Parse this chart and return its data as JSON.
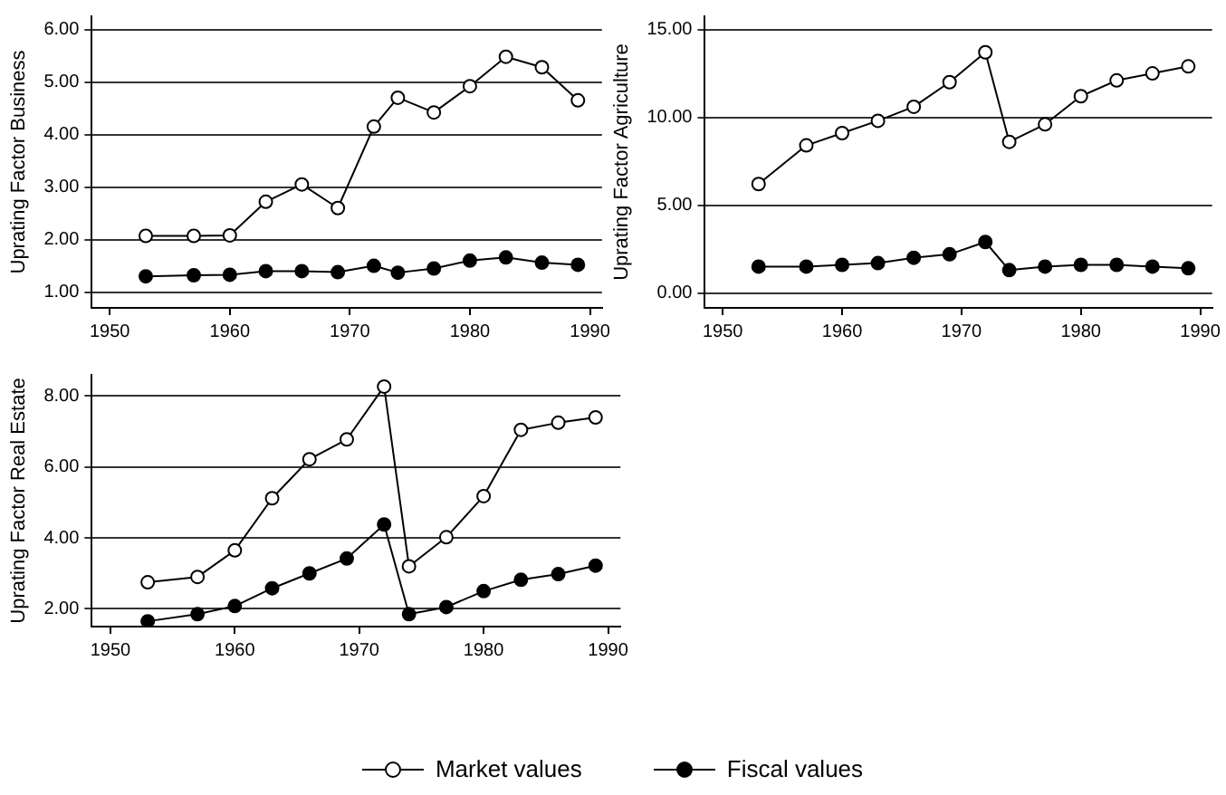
{
  "chart_data": [
    {
      "type": "line",
      "ylabel": "Uprating Factor Business",
      "x": [
        1953,
        1957,
        1960,
        1963,
        1966,
        1969,
        1972,
        1974,
        1977,
        1980,
        1983,
        1986,
        1989
      ],
      "xlim": [
        1948.5,
        1991
      ],
      "xticks": [
        1950,
        1960,
        1970,
        1980,
        1990
      ],
      "ylim": [
        0.7,
        6.25
      ],
      "yticks": [
        {
          "value": 1,
          "label": "1.00"
        },
        {
          "value": 2,
          "label": "2.00"
        },
        {
          "value": 3,
          "label": "3.00"
        },
        {
          "value": 4,
          "label": "4.00"
        },
        {
          "value": 5,
          "label": "5.00"
        },
        {
          "value": 6,
          "label": "6.00"
        }
      ],
      "grid": "y",
      "marker": "circle",
      "series": [
        {
          "color": "#000000",
          "values": [
            2.07,
            2.07,
            2.08,
            2.72,
            3.05,
            2.6,
            4.15,
            4.7,
            4.42,
            4.92,
            5.48,
            5.28,
            4.65
          ]
        },
        {
          "color": "#000000",
          "values": [
            1.3,
            1.32,
            1.33,
            1.4,
            1.4,
            1.38,
            1.5,
            1.37,
            1.45,
            1.6,
            1.66,
            1.56,
            1.52
          ]
        }
      ]
    },
    {
      "type": "line",
      "ylabel": "Uprating Factor Agriculture",
      "x": [
        1953,
        1957,
        1960,
        1963,
        1966,
        1969,
        1972,
        1974,
        1977,
        1980,
        1983,
        1986,
        1989
      ],
      "xlim": [
        1948.5,
        1991
      ],
      "xticks": [
        1950,
        1960,
        1970,
        1980,
        1990
      ],
      "ylim": [
        -0.85,
        15.75
      ],
      "yticks": [
        {
          "value": 0,
          "label": "0.00"
        },
        {
          "value": 5,
          "label": "5.00"
        },
        {
          "value": 10,
          "label": "10.00"
        },
        {
          "value": 15,
          "label": "15.00"
        }
      ],
      "grid": "y",
      "marker": "circle",
      "series": [
        {
          "color": "#000000",
          "values": [
            6.2,
            8.4,
            9.1,
            9.8,
            10.6,
            12.0,
            13.7,
            8.6,
            9.6,
            11.2,
            12.1,
            12.5,
            12.9
          ]
        },
        {
          "color": "#000000",
          "values": [
            1.5,
            1.5,
            1.6,
            1.7,
            2.0,
            2.2,
            2.9,
            1.3,
            1.5,
            1.6,
            1.6,
            1.5,
            1.4
          ]
        }
      ]
    },
    {
      "type": "line",
      "ylabel": "Uprating Factor Real Estate",
      "x": [
        1953,
        1957,
        1960,
        1963,
        1966,
        1969,
        1972,
        1974,
        1977,
        1980,
        1983,
        1986,
        1989
      ],
      "xlim": [
        1948.5,
        1991
      ],
      "xticks": [
        1950,
        1960,
        1970,
        1980,
        1990
      ],
      "ylim": [
        1.5,
        8.6
      ],
      "yticks": [
        {
          "value": 2,
          "label": "2.00"
        },
        {
          "value": 4,
          "label": "4.00"
        },
        {
          "value": 6,
          "label": "6.00"
        },
        {
          "value": 8,
          "label": "8.00"
        }
      ],
      "grid": "y",
      "marker": "circle",
      "legend": "bottom",
      "series": [
        {
          "name": "Market values",
          "color": "#000000",
          "values": [
            2.75,
            2.9,
            3.65,
            5.12,
            6.22,
            6.78,
            8.27,
            3.2,
            4.02,
            5.18,
            7.05,
            7.25,
            7.4
          ]
        },
        {
          "name": "Fiscal values",
          "color": "#000000",
          "values": [
            1.65,
            1.85,
            2.08,
            2.58,
            3.0,
            3.42,
            4.38,
            1.85,
            2.05,
            2.5,
            2.82,
            2.98,
            3.22
          ]
        }
      ]
    }
  ]
}
